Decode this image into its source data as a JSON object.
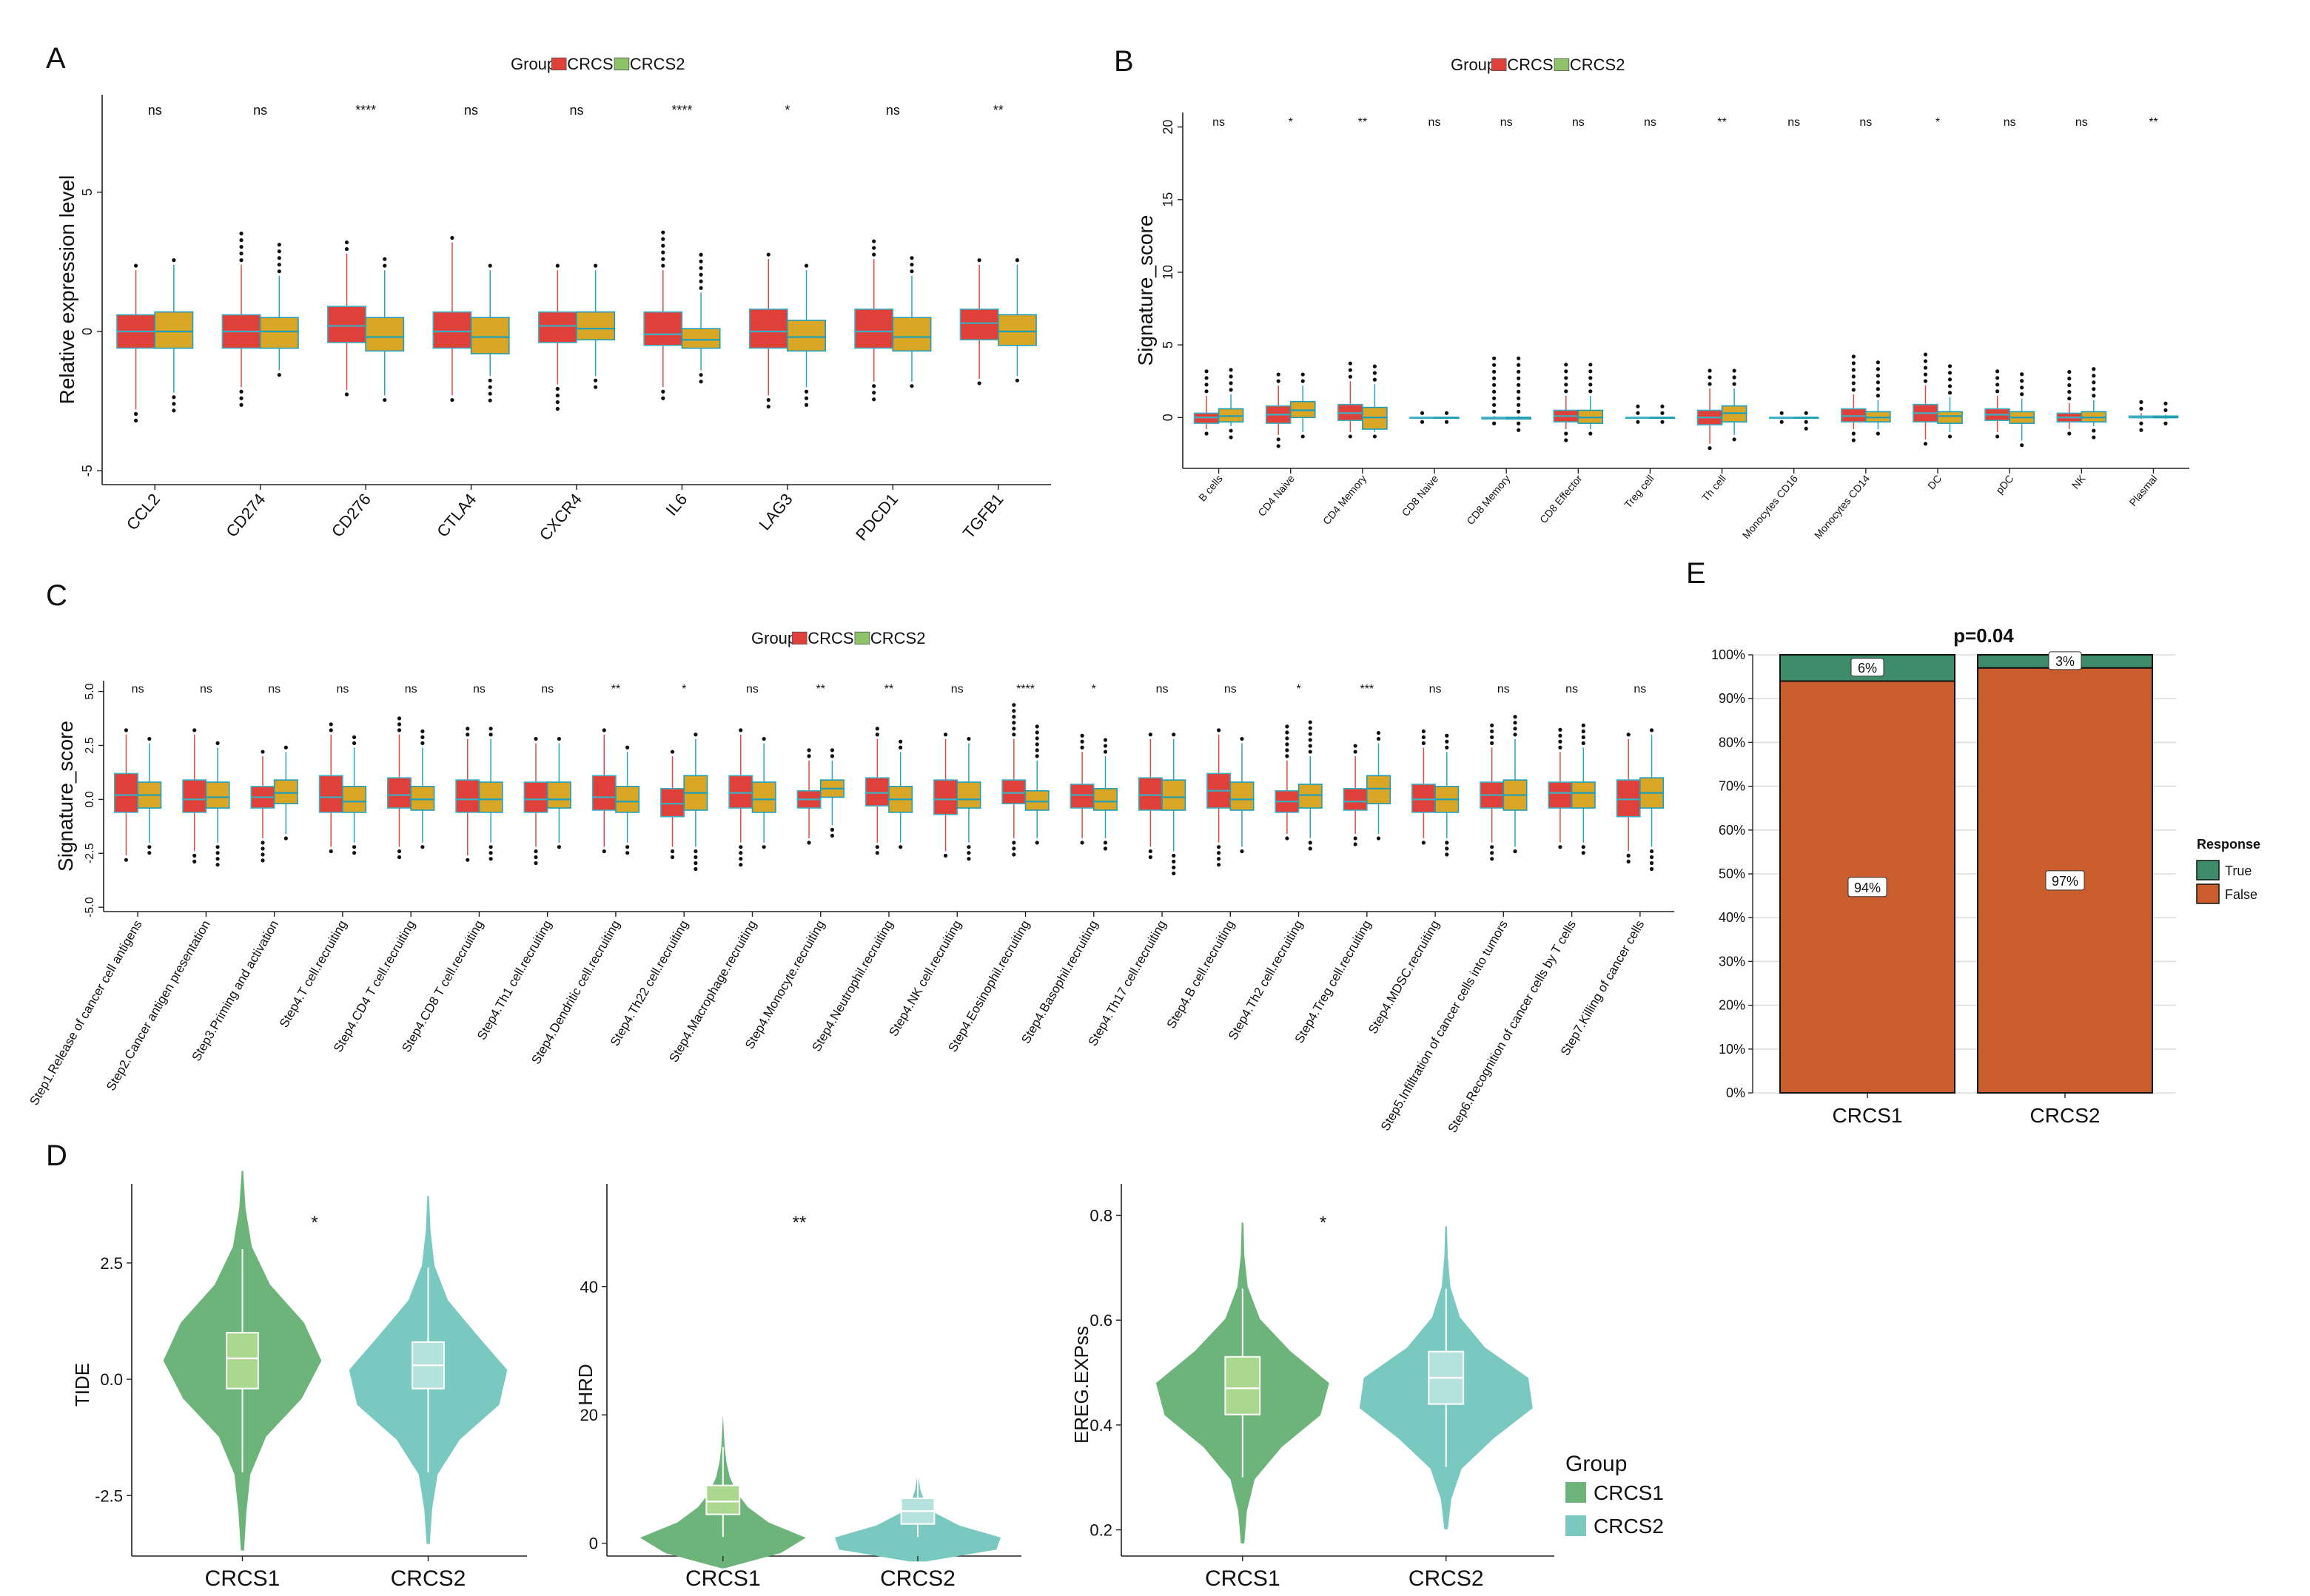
{
  "figure": {
    "panel_letters": [
      "A",
      "B",
      "C",
      "D",
      "E"
    ],
    "colors": {
      "crcs1_box": "#E0403A",
      "crcs2_box": "#D9A626",
      "crcs1_edge": "#3BB0C4",
      "crcs2_edge": "#1E9EB8",
      "legend_crcs2_swatch": "#8FC36A",
      "violin_crcs1": "#6CB47A",
      "violin_crcs2": "#79C9C1",
      "violin_box_crcs1": "#A9D88E",
      "violin_box_crcs2": "#B5E2DC",
      "response_true": "#3F8C6B",
      "response_false": "#C95E2C"
    }
  },
  "chart_data": [
    {
      "panel": "A",
      "type": "box",
      "ylabel": "Relative expression level",
      "ylim": [
        -5.5,
        8.5
      ],
      "yticks": [
        -5,
        0,
        5
      ],
      "legend": {
        "title": "Group",
        "labels": [
          "CRCS1",
          "CRCS2"
        ]
      },
      "categories": [
        "CCL2",
        "CD274",
        "CD276",
        "CTLA4",
        "CXCR4",
        "IL6",
        "LAG3",
        "PDCD1",
        "TGFB1"
      ],
      "significance": [
        "ns",
        "ns",
        "****",
        "ns",
        "ns",
        "****",
        "*",
        "ns",
        "**"
      ],
      "series": [
        {
          "name": "CRCS1",
          "stats": [
            [
              -2.8,
              -0.6,
              0.0,
              0.6,
              2.2
            ],
            [
              -2.0,
              -0.6,
              0.0,
              0.6,
              2.4
            ],
            [
              -2.1,
              -0.4,
              0.2,
              0.9,
              2.8
            ],
            [
              -2.3,
              -0.6,
              0.0,
              0.7,
              3.2
            ],
            [
              -1.9,
              -0.4,
              0.2,
              0.7,
              2.2
            ],
            [
              -2.0,
              -0.5,
              -0.1,
              0.7,
              2.2
            ],
            [
              -2.3,
              -0.6,
              0.0,
              0.8,
              2.6
            ],
            [
              -1.8,
              -0.6,
              0.0,
              0.8,
              2.6
            ],
            [
              -1.7,
              -0.3,
              0.3,
              0.8,
              2.4
            ]
          ]
        },
        {
          "name": "CRCS2",
          "stats": [
            [
              -2.2,
              -0.6,
              0.0,
              0.7,
              2.4
            ],
            [
              -1.4,
              -0.6,
              0.0,
              0.5,
              2.0
            ],
            [
              -2.3,
              -0.7,
              -0.2,
              0.5,
              2.2
            ],
            [
              -1.6,
              -0.8,
              -0.2,
              0.5,
              2.2
            ],
            [
              -1.6,
              -0.3,
              0.1,
              0.7,
              2.2
            ],
            [
              -1.4,
              -0.6,
              -0.3,
              0.1,
              1.4
            ],
            [
              -2.0,
              -0.7,
              -0.2,
              0.4,
              2.2
            ],
            [
              -1.8,
              -0.7,
              -0.2,
              0.5,
              2.0
            ],
            [
              -1.6,
              -0.5,
              0.0,
              0.6,
              2.4
            ]
          ]
        }
      ]
    },
    {
      "panel": "B",
      "type": "box",
      "ylabel": "Signature_score",
      "ylim": [
        -3.5,
        21
      ],
      "yticks": [
        0,
        5,
        10,
        15,
        20
      ],
      "legend": {
        "title": "Group",
        "labels": [
          "CRCS1",
          "CRCS2"
        ]
      },
      "categories": [
        "B cells",
        "CD4 Naive",
        "CD4 Memory",
        "CD8 Naive",
        "CD8 Memory",
        "CD8 Effector",
        "Treg cell",
        "Th cell",
        "Monocytes CD16",
        "Monocytes CD14",
        "DC",
        "pDC",
        "NK",
        "Plasmal"
      ],
      "significance": [
        "ns",
        "*",
        "**",
        "ns",
        "ns",
        "ns",
        "ns",
        "**",
        "ns",
        "ns",
        "*",
        "ns",
        "ns",
        "**"
      ],
      "series": [
        {
          "name": "CRCS1",
          "stats": [
            [
              -0.8,
              -0.4,
              0.0,
              0.3,
              1.5
            ],
            [
              -1.2,
              -0.4,
              0.2,
              0.8,
              2.2
            ],
            [
              -1.0,
              -0.2,
              0.3,
              0.9,
              2.5
            ],
            [
              0.0,
              0.0,
              0.0,
              0.0,
              0.0
            ],
            [
              -0.1,
              -0.1,
              0.0,
              0.0,
              0.1
            ],
            [
              -0.8,
              -0.3,
              0.1,
              0.5,
              1.5
            ],
            [
              0.0,
              0.0,
              0.0,
              0.0,
              0.0
            ],
            [
              -1.8,
              -0.5,
              0.0,
              0.5,
              2.0
            ],
            [
              0.0,
              0.0,
              0.0,
              0.0,
              0.0
            ],
            [
              -0.8,
              -0.3,
              0.1,
              0.6,
              1.6
            ],
            [
              -1.5,
              -0.3,
              0.3,
              0.9,
              2.2
            ],
            [
              -1.0,
              -0.2,
              0.2,
              0.6,
              1.5
            ],
            [
              -0.8,
              -0.3,
              0.0,
              0.3,
              1.0
            ],
            [
              -0.1,
              0.0,
              0.0,
              0.1,
              0.3
            ]
          ]
        },
        {
          "name": "CRCS2",
          "stats": [
            [
              -0.6,
              -0.3,
              0.1,
              0.6,
              1.6
            ],
            [
              -1.0,
              0.0,
              0.5,
              1.1,
              2.2
            ],
            [
              -1.0,
              -0.8,
              0.0,
              0.7,
              2.3
            ],
            [
              0.0,
              0.0,
              0.0,
              0.0,
              0.0
            ],
            [
              -0.1,
              -0.1,
              0.0,
              0.0,
              0.1
            ],
            [
              -0.8,
              -0.4,
              0.0,
              0.5,
              1.5
            ],
            [
              0.0,
              0.0,
              0.0,
              0.0,
              0.0
            ],
            [
              -1.2,
              -0.3,
              0.3,
              0.8,
              2.0
            ],
            [
              0.0,
              0.0,
              0.0,
              0.0,
              0.0
            ],
            [
              -0.8,
              -0.3,
              0.0,
              0.4,
              1.2
            ],
            [
              -1.0,
              -0.4,
              0.1,
              0.4,
              1.4
            ],
            [
              -1.6,
              -0.4,
              0.0,
              0.4,
              1.3
            ],
            [
              -0.6,
              -0.3,
              0.0,
              0.4,
              1.2
            ],
            [
              -0.1,
              0.0,
              0.0,
              0.1,
              0.2
            ]
          ]
        }
      ]
    },
    {
      "panel": "C",
      "type": "box",
      "ylabel": "Signature_score",
      "ylim": [
        -5.2,
        5.5
      ],
      "yticks": [
        -5.0,
        -2.5,
        0.0,
        2.5,
        5.0
      ],
      "ytick_labels": [
        "-5.0",
        "-2.5",
        "0.0",
        "2.5",
        "5.0"
      ],
      "legend": {
        "title": "Group",
        "labels": [
          "CRCS1",
          "CRCS2"
        ]
      },
      "categories": [
        "Step1.Release of cancer cell antigens",
        "Step2.Cancer antigen presentation",
        "Step3.Priming and activation",
        "Step4.T cell.recruiting",
        "Step4.CD4 T cell.recruiting",
        "Step4.CD8 T cell.recruiting",
        "Step4.Th1 cell.recruiting",
        "Step4.Dendritic cell.recruiting",
        "Step4.Th22 cell.recruiting",
        "Step4.Macrophage.recruiting",
        "Step4.Monocyte.recruiting",
        "Step4.Neutrophil.recruiting",
        "Step4.NK cell.recruiting",
        "Step4.Eosinophil.recruiting",
        "Step4.Basophil.recruiting",
        "Step4.Th17 cell.recruiting",
        "Step4.B cell.recruiting",
        "Step4.Th2 cell.recruiting",
        "Step4.Treg cell.recruiting",
        "Step4.MDSC.recruiting",
        "Step5.Infiltration of cancer cells into tumors",
        "Step6.Recognition of cancer cells by T cells",
        "Step7.Killing of cancer cells"
      ],
      "significance": [
        "ns",
        "ns",
        "ns",
        "ns",
        "ns",
        "ns",
        "ns",
        "**",
        "*",
        "ns",
        "**",
        "**",
        "ns",
        "****",
        "*",
        "ns",
        "ns",
        "*",
        "***",
        "ns",
        "ns",
        "ns",
        "ns"
      ],
      "series": [
        {
          "name": "CRCS1",
          "stats": [
            [
              -2.6,
              -0.6,
              0.2,
              1.2,
              3.0
            ],
            [
              -2.4,
              -0.6,
              0.0,
              0.9,
              3.0
            ],
            [
              -1.8,
              -0.4,
              0.1,
              0.6,
              2.0
            ],
            [
              -2.2,
              -0.6,
              0.1,
              1.1,
              3.0
            ],
            [
              -2.2,
              -0.4,
              0.2,
              1.0,
              3.0
            ],
            [
              -2.6,
              -0.6,
              0.0,
              0.9,
              2.8
            ],
            [
              -2.2,
              -0.6,
              0.0,
              0.8,
              2.6
            ],
            [
              -2.2,
              -0.5,
              0.1,
              1.1,
              3.0
            ],
            [
              -2.2,
              -0.8,
              -0.2,
              0.5,
              2.0
            ],
            [
              -2.0,
              -0.4,
              0.3,
              1.1,
              3.0
            ],
            [
              -1.8,
              -0.4,
              0.0,
              0.4,
              1.8
            ],
            [
              -2.0,
              -0.3,
              0.3,
              1.0,
              2.8
            ],
            [
              -2.4,
              -0.7,
              0.0,
              0.9,
              2.8
            ],
            [
              -1.8,
              -0.2,
              0.3,
              0.9,
              2.8
            ],
            [
              -1.8,
              -0.4,
              0.2,
              0.7,
              2.2
            ],
            [
              -2.2,
              -0.5,
              0.2,
              1.0,
              2.8
            ],
            [
              -2.0,
              -0.4,
              0.4,
              1.2,
              3.0
            ],
            [
              -1.6,
              -0.6,
              -0.1,
              0.4,
              1.8
            ],
            [
              -1.6,
              -0.5,
              -0.1,
              0.5,
              2.0
            ],
            [
              -1.8,
              -0.6,
              0.0,
              0.7,
              2.4
            ],
            [
              -2.0,
              -0.4,
              0.2,
              0.8,
              2.4
            ],
            [
              -2.0,
              -0.4,
              0.3,
              0.8,
              2.2
            ],
            [
              -2.4,
              -0.8,
              0.0,
              0.9,
              2.8
            ]
          ]
        },
        {
          "name": "CRCS2",
          "stats": [
            [
              -2.0,
              -0.4,
              0.2,
              0.8,
              2.6
            ],
            [
              -2.0,
              -0.4,
              0.1,
              0.8,
              2.4
            ],
            [
              -1.6,
              -0.2,
              0.3,
              0.9,
              2.2
            ],
            [
              -2.0,
              -0.6,
              -0.1,
              0.6,
              2.4
            ],
            [
              -2.0,
              -0.5,
              0.0,
              0.6,
              2.4
            ],
            [
              -2.0,
              -0.6,
              0.0,
              0.8,
              2.8
            ],
            [
              -2.0,
              -0.4,
              0.0,
              0.8,
              2.6
            ],
            [
              -2.0,
              -0.6,
              -0.1,
              0.6,
              2.2
            ],
            [
              -2.2,
              -0.5,
              0.3,
              1.1,
              2.8
            ],
            [
              -2.0,
              -0.6,
              0.0,
              0.8,
              2.6
            ],
            [
              -1.2,
              0.1,
              0.5,
              0.9,
              1.8
            ],
            [
              -2.0,
              -0.6,
              0.0,
              0.6,
              2.2
            ],
            [
              -2.0,
              -0.4,
              0.0,
              0.8,
              2.6
            ],
            [
              -1.8,
              -0.5,
              -0.1,
              0.4,
              1.8
            ],
            [
              -1.8,
              -0.5,
              -0.1,
              0.5,
              2.0
            ],
            [
              -2.4,
              -0.5,
              0.1,
              0.9,
              2.8
            ],
            [
              -2.2,
              -0.5,
              0.0,
              0.8,
              2.6
            ],
            [
              -1.8,
              -0.4,
              0.2,
              0.7,
              2.0
            ],
            [
              -1.6,
              -0.2,
              0.5,
              1.1,
              2.6
            ],
            [
              -1.8,
              -0.6,
              0.0,
              0.6,
              2.2
            ],
            [
              -2.2,
              -0.5,
              0.2,
              0.9,
              2.8
            ],
            [
              -2.0,
              -0.4,
              0.3,
              0.8,
              2.4
            ],
            [
              -2.2,
              -0.4,
              0.3,
              1.0,
              3.0
            ]
          ]
        }
      ]
    },
    {
      "panel": "D",
      "type": "violin",
      "categories": [
        "CRCS1",
        "CRCS2"
      ],
      "legend": {
        "title": "Group",
        "labels": [
          "CRCS1",
          "CRCS2"
        ]
      },
      "plots": [
        {
          "ylabel": "TIDE",
          "ylim": [
            -3.8,
            4.2
          ],
          "yticks": [
            -2.5,
            0.0,
            2.5
          ],
          "ytick_labels": [
            "-2.5",
            "0.0",
            "2.5"
          ],
          "significance": "*",
          "stats": [
            [
              -2.0,
              -0.2,
              0.45,
              1.0,
              2.8
            ],
            [
              -2.0,
              -0.2,
              0.3,
              0.8,
              2.4
            ]
          ]
        },
        {
          "ylabel": "HRD",
          "ylim": [
            -2,
            56
          ],
          "yticks": [
            0,
            20,
            40
          ],
          "ytick_labels": [
            "0",
            "20",
            "40"
          ],
          "significance": "**",
          "stats": [
            [
              1,
              4.5,
              6.5,
              9,
              15
            ],
            [
              1,
              3,
              5,
              7,
              12
            ]
          ]
        },
        {
          "ylabel": "EREG.EXPss",
          "ylim": [
            0.15,
            0.86
          ],
          "yticks": [
            0.2,
            0.4,
            0.6,
            0.8
          ],
          "ytick_labels": [
            "0.2",
            "0.4",
            "0.6",
            "0.8"
          ],
          "significance": "*",
          "stats": [
            [
              0.3,
              0.42,
              0.47,
              0.53,
              0.66
            ],
            [
              0.32,
              0.44,
              0.49,
              0.54,
              0.66
            ]
          ]
        }
      ]
    },
    {
      "panel": "E",
      "type": "stacked_bar",
      "title": "p=0.04",
      "categories": [
        "CRCS1",
        "CRCS2"
      ],
      "yticks": [
        "0%",
        "10%",
        "20%",
        "30%",
        "40%",
        "50%",
        "60%",
        "70%",
        "80%",
        "90%",
        "100%"
      ],
      "legend": {
        "title": "Response",
        "labels": [
          "True",
          "False"
        ]
      },
      "series": [
        {
          "name": "True",
          "values": [
            6,
            3
          ],
          "labels": [
            "6%",
            "3%"
          ]
        },
        {
          "name": "False",
          "values": [
            94,
            97
          ],
          "labels": [
            "94%",
            "97%"
          ]
        }
      ]
    }
  ]
}
